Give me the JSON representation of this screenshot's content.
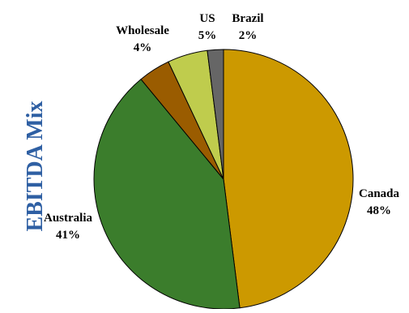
{
  "chart_data": {
    "type": "pie",
    "title": "",
    "ylabel": "EBITDA Mix",
    "ylabel_color": "#2E5FA3",
    "slices": [
      {
        "label": "Canada",
        "percent_text": "48%",
        "value": 48,
        "color": "#CC9900"
      },
      {
        "label": "Australia",
        "percent_text": "41%",
        "value": 41,
        "color": "#3B7D2C"
      },
      {
        "label": "Wholesale",
        "percent_text": "4%",
        "value": 4,
        "color": "#9A5C00"
      },
      {
        "label": "US",
        "percent_text": "5%",
        "value": 5,
        "color": "#BFCC4D"
      },
      {
        "label": "Brazil",
        "percent_text": "2%",
        "value": 2,
        "color": "#666666"
      }
    ],
    "outline_color": "#000000"
  }
}
